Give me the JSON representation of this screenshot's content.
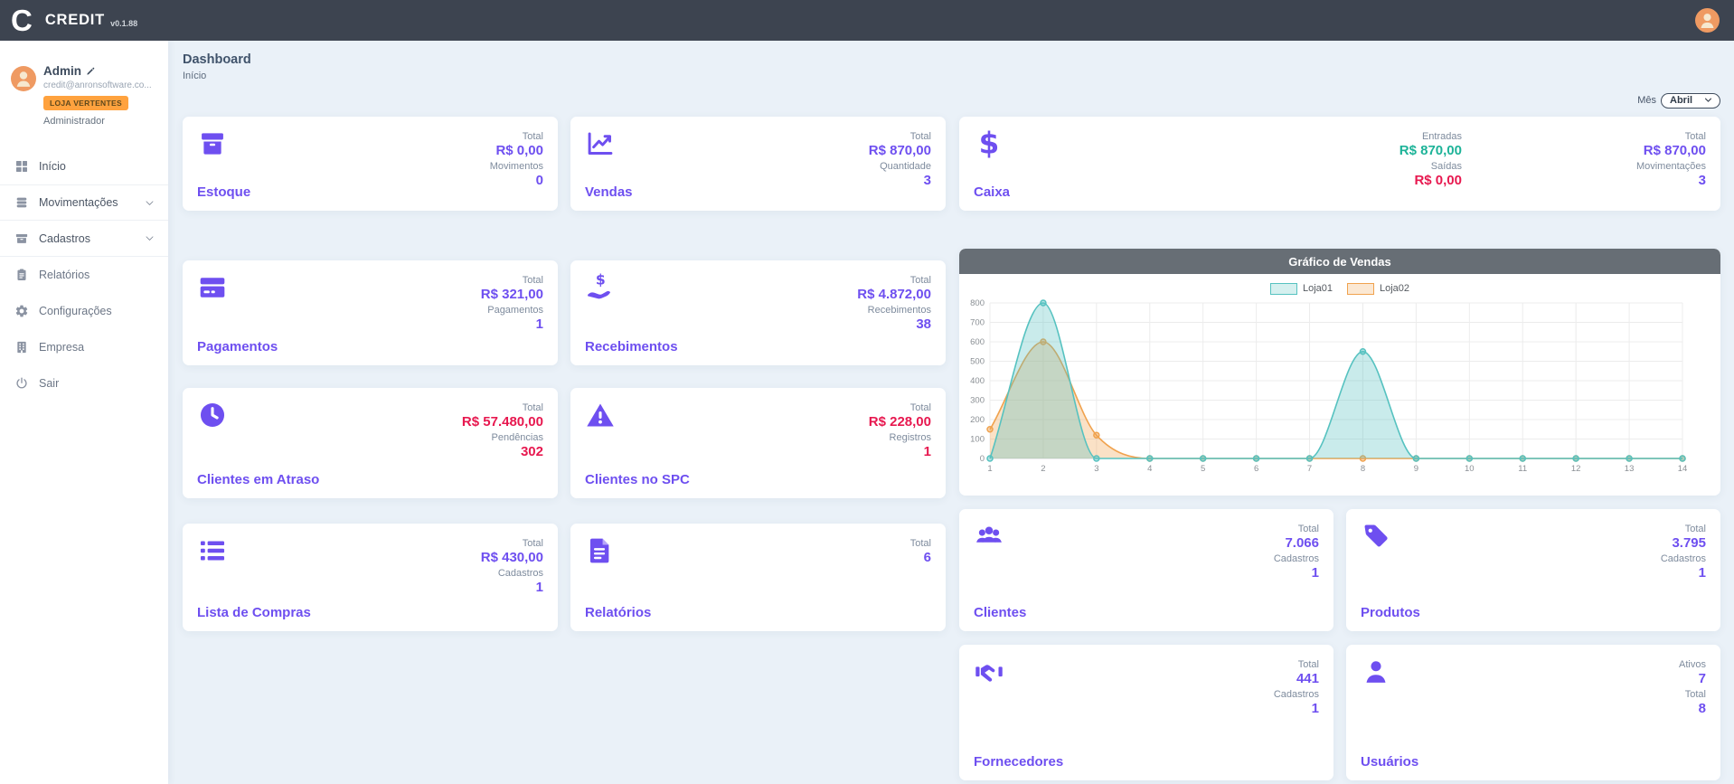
{
  "topbar": {
    "logo_letter": "C",
    "app_name": "CREDIT",
    "version": "v0.1.88"
  },
  "sidebar": {
    "user": {
      "name": "Admin",
      "email": "credit@anronsoftware.co...",
      "badge": "LOJA VERTENTES",
      "role": "Administrador"
    },
    "items": [
      {
        "id": "inicio",
        "label": "Início",
        "icon": "grid-icon",
        "expandable": false,
        "borders": ""
      },
      {
        "id": "movimentacoes",
        "label": "Movimentações",
        "icon": "coins-icon",
        "expandable": true,
        "borders": "bt bb"
      },
      {
        "id": "cadastros",
        "label": "Cadastros",
        "icon": "archive-icon",
        "expandable": true,
        "borders": "bb"
      },
      {
        "id": "relatorios",
        "label": "Relatórios",
        "icon": "clipboard-icon",
        "expandable": false,
        "borders": "dim"
      },
      {
        "id": "configuracoes",
        "label": "Configurações",
        "icon": "gear-icon",
        "expandable": false,
        "borders": "dim"
      },
      {
        "id": "empresa",
        "label": "Empresa",
        "icon": "building-icon",
        "expandable": false,
        "borders": "dim"
      },
      {
        "id": "sair",
        "label": "Sair",
        "icon": "power-icon",
        "expandable": false,
        "borders": "dim"
      }
    ]
  },
  "header": {
    "title": "Dashboard",
    "breadcrumb": "Início",
    "month_label": "Mês",
    "month_value": "Abril"
  },
  "stat_cards": {
    "left": [
      {
        "id": "estoque",
        "title": "Estoque",
        "icon": "box-icon",
        "stats": [
          {
            "label": "Total",
            "value": "R$ 0,00",
            "color": "purple"
          },
          {
            "label": "Movimentos",
            "value": "0",
            "color": "purple"
          }
        ]
      },
      {
        "id": "vendas",
        "title": "Vendas",
        "icon": "chart-line-icon",
        "stats": [
          {
            "label": "Total",
            "value": "R$ 870,00",
            "color": "purple"
          },
          {
            "label": "Quantidade",
            "value": "3",
            "color": "purple"
          }
        ]
      },
      {
        "id": "pagamentos",
        "title": "Pagamentos",
        "icon": "credit-card-icon",
        "stats": [
          {
            "label": "Total",
            "value": "R$ 321,00",
            "color": "purple"
          },
          {
            "label": "Pagamentos",
            "value": "1",
            "color": "purple"
          }
        ]
      },
      {
        "id": "recebimentos",
        "title": "Recebimentos",
        "icon": "hand-usd-icon",
        "stats": [
          {
            "label": "Total",
            "value": "R$ 4.872,00",
            "color": "purple"
          },
          {
            "label": "Recebimentos",
            "value": "38",
            "color": "purple"
          }
        ]
      },
      {
        "id": "clientes-atraso",
        "title": "Clientes em Atraso",
        "icon": "clock-icon",
        "stats": [
          {
            "label": "Total",
            "value": "R$ 57.480,00",
            "color": "red"
          },
          {
            "label": "Pendências",
            "value": "302",
            "color": "red"
          }
        ]
      },
      {
        "id": "clientes-spc",
        "title": "Clientes no SPC",
        "icon": "warning-icon",
        "stats": [
          {
            "label": "Total",
            "value": "R$ 228,00",
            "color": "red"
          },
          {
            "label": "Registros",
            "value": "1",
            "color": "red"
          }
        ]
      },
      {
        "id": "lista-compras",
        "title": "Lista de Compras",
        "icon": "list-icon",
        "stats": [
          {
            "label": "Total",
            "value": "R$ 430,00",
            "color": "purple"
          },
          {
            "label": "Cadastros",
            "value": "1",
            "color": "purple"
          }
        ]
      },
      {
        "id": "relatorios",
        "title": "Relatórios",
        "icon": "file-icon",
        "stats": [
          {
            "label": "Total",
            "value": "6",
            "color": "purple"
          }
        ]
      }
    ],
    "caixa": {
      "id": "caixa",
      "title": "Caixa",
      "icon": "dollar-icon",
      "groups": [
        [
          {
            "label": "Entradas",
            "value": "R$ 870,00",
            "color": "green"
          },
          {
            "label": "Saídas",
            "value": "R$ 0,00",
            "color": "red"
          }
        ],
        [
          {
            "label": "Total",
            "value": "R$ 870,00",
            "color": "purple"
          },
          {
            "label": "Movimentações",
            "value": "3",
            "color": "purple"
          }
        ]
      ]
    },
    "right": [
      {
        "id": "clientes",
        "title": "Clientes",
        "icon": "users-icon",
        "stats": [
          {
            "label": "Total",
            "value": "7.066",
            "color": "purple"
          },
          {
            "label": "Cadastros",
            "value": "1",
            "color": "purple"
          }
        ]
      },
      {
        "id": "produtos",
        "title": "Produtos",
        "icon": "tag-icon",
        "stats": [
          {
            "label": "Total",
            "value": "3.795",
            "color": "purple"
          },
          {
            "label": "Cadastros",
            "value": "1",
            "color": "purple"
          }
        ]
      },
      {
        "id": "fornecedores",
        "title": "Fornecedores",
        "icon": "handshake-icon",
        "stats": [
          {
            "label": "Total",
            "value": "441",
            "color": "purple"
          },
          {
            "label": "Cadastros",
            "value": "1",
            "color": "purple"
          }
        ]
      },
      {
        "id": "usuarios",
        "title": "Usuários",
        "icon": "user-icon",
        "stats": [
          {
            "label": "Ativos",
            "value": "7",
            "color": "purple"
          },
          {
            "label": "Total",
            "value": "8",
            "color": "purple"
          }
        ]
      }
    ]
  },
  "chart_data": {
    "type": "area",
    "title": "Gráfico de Vendas",
    "x": [
      1,
      2,
      3,
      4,
      5,
      6,
      7,
      8,
      9,
      10,
      11,
      12,
      13,
      14
    ],
    "series": [
      {
        "name": "Loja01",
        "color": "#56c2c0",
        "values": [
          0,
          800,
          0,
          0,
          0,
          0,
          0,
          550,
          0,
          0,
          0,
          0,
          0,
          0
        ]
      },
      {
        "name": "Loja02",
        "color": "#f0a24e",
        "values": [
          150,
          600,
          120,
          0,
          0,
          0,
          0,
          0,
          0,
          0,
          0,
          0,
          0,
          0
        ]
      }
    ],
    "ylim": [
      0,
      800
    ],
    "ytick_step": 100,
    "grid": true,
    "legend_position": "top",
    "smoothing": "monotone"
  },
  "theme": {
    "purple": "#6e4ff0",
    "red": "#e7184f",
    "green": "#1db398",
    "orange": "#ffa23e",
    "topbar": "#3d4450"
  }
}
